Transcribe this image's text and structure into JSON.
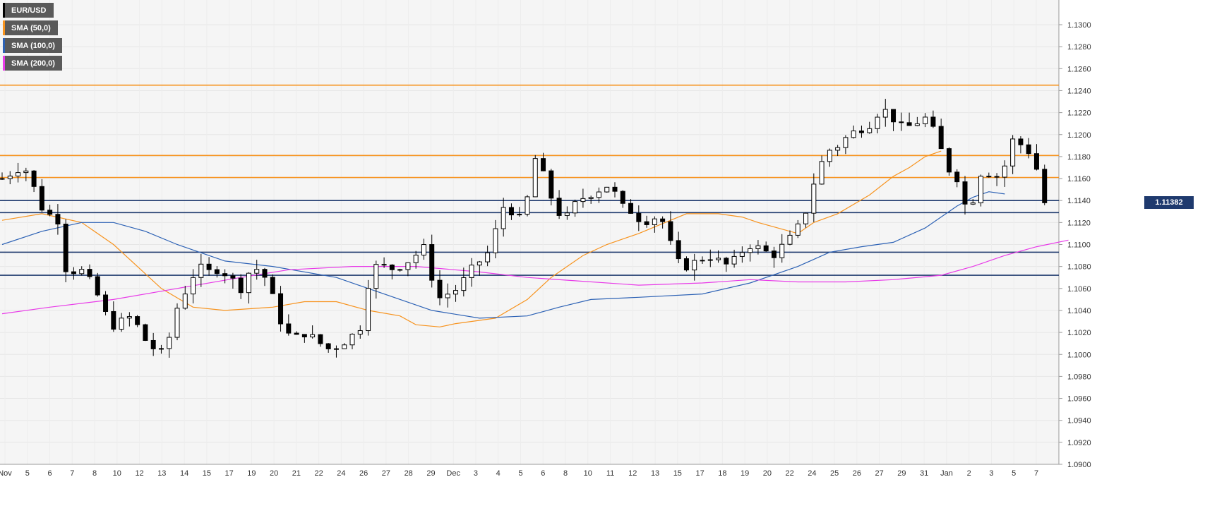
{
  "legend": [
    {
      "label": "EUR/USD",
      "color": "#000000"
    },
    {
      "label": "SMA (50,0)",
      "color": "#f7931e"
    },
    {
      "label": "SMA (100,0)",
      "color": "#2d62b5"
    },
    {
      "label": "SMA (200,0)",
      "color": "#e83be8"
    }
  ],
  "last_price": "1.11382",
  "chart_data": {
    "type": "candlestick",
    "title": "",
    "xlabel": "",
    "ylabel": "",
    "ylim": [
      1.09,
      1.13
    ],
    "y_ticks": [
      "1.1300",
      "1.1280",
      "1.1260",
      "1.1240",
      "1.1220",
      "1.1200",
      "1.1180",
      "1.1160",
      "1.1140",
      "1.1120",
      "1.1100",
      "1.1080",
      "1.1060",
      "1.1040",
      "1.1020",
      "1.1000",
      "1.0980",
      "1.0960",
      "1.0940",
      "1.0920",
      "1.0900"
    ],
    "x_ticks": [
      "Nov",
      "5",
      "6",
      "7",
      "8",
      "10",
      "12",
      "13",
      "14",
      "15",
      "17",
      "19",
      "20",
      "21",
      "22",
      "24",
      "26",
      "27",
      "28",
      "29",
      "Dec",
      "3",
      "4",
      "5",
      "6",
      "8",
      "10",
      "11",
      "12",
      "13",
      "15",
      "17",
      "18",
      "19",
      "20",
      "22",
      "24",
      "25",
      "26",
      "27",
      "29",
      "31",
      "Jan",
      "2",
      "3",
      "5",
      "7"
    ],
    "horizontal_levels": [
      {
        "value": 1.1245,
        "color": "#f7931e",
        "kind": "resistance"
      },
      {
        "value": 1.1181,
        "color": "#f7931e",
        "kind": "resistance"
      },
      {
        "value": 1.1161,
        "color": "#f7931e",
        "kind": "resistance"
      },
      {
        "value": 1.114,
        "color": "#1f3a6e",
        "kind": "support"
      },
      {
        "value": 1.1129,
        "color": "#1f3a6e",
        "kind": "support"
      },
      {
        "value": 1.1093,
        "color": "#1f3a6e",
        "kind": "support"
      },
      {
        "value": 1.1072,
        "color": "#1f3a6e",
        "kind": "support"
      }
    ],
    "close_path": [
      [
        0,
        1.116
      ],
      [
        2,
        1.1172
      ],
      [
        3,
        1.115
      ],
      [
        4,
        1.1125
      ],
      [
        5,
        1.113
      ],
      [
        6,
        1.107
      ],
      [
        7,
        1.108
      ],
      [
        8,
        1.1068
      ],
      [
        9,
        1.105
      ],
      [
        10,
        1.1025
      ],
      [
        11,
        1.103
      ],
      [
        12,
        1.1035
      ],
      [
        13,
        1.1015
      ],
      [
        14,
        1.1005
      ],
      [
        15,
        1.1
      ],
      [
        16,
        1.104
      ],
      [
        17,
        1.106
      ],
      [
        18,
        1.108
      ],
      [
        19,
        1.1075
      ],
      [
        20,
        1.1078
      ],
      [
        21,
        1.107
      ],
      [
        22,
        1.106
      ],
      [
        23,
        1.108
      ],
      [
        24,
        1.1075
      ],
      [
        25,
        1.105
      ],
      [
        26,
        1.102
      ],
      [
        27,
        1.1015
      ],
      [
        28,
        1.102
      ],
      [
        29,
        1.1012
      ],
      [
        30,
        1.1005
      ],
      [
        31,
        1.1008
      ],
      [
        32,
        1.1015
      ],
      [
        33,
        1.1025
      ],
      [
        34,
        1.108
      ],
      [
        35,
        1.108
      ],
      [
        36,
        1.1078
      ],
      [
        37,
        1.1082
      ],
      [
        38,
        1.109
      ],
      [
        39,
        1.1098
      ],
      [
        40,
        1.105
      ],
      [
        41,
        1.1055
      ],
      [
        42,
        1.106
      ],
      [
        43,
        1.1075
      ],
      [
        44,
        1.1085
      ],
      [
        45,
        1.1095
      ],
      [
        46,
        1.1135
      ],
      [
        47,
        1.113
      ],
      [
        48,
        1.112
      ],
      [
        49,
        1.118
      ],
      [
        50,
        1.116
      ],
      [
        51,
        1.113
      ],
      [
        52,
        1.1125
      ],
      [
        53,
        1.114
      ],
      [
        54,
        1.1145
      ],
      [
        55,
        1.115
      ],
      [
        56,
        1.1155
      ],
      [
        57,
        1.1135
      ],
      [
        58,
        1.113
      ],
      [
        59,
        1.112
      ],
      [
        60,
        1.1125
      ],
      [
        61,
        1.112
      ],
      [
        62,
        1.1085
      ],
      [
        63,
        1.108
      ],
      [
        64,
        1.1085
      ],
      [
        65,
        1.109
      ],
      [
        66,
        1.1085
      ],
      [
        67,
        1.108
      ],
      [
        68,
        1.1093
      ],
      [
        69,
        1.11
      ],
      [
        70,
        1.1095
      ],
      [
        71,
        1.109
      ],
      [
        72,
        1.11
      ],
      [
        73,
        1.111
      ],
      [
        74,
        1.113
      ],
      [
        75,
        1.1165
      ],
      [
        76,
        1.1185
      ],
      [
        77,
        1.119
      ],
      [
        78,
        1.12
      ],
      [
        79,
        1.1205
      ],
      [
        80,
        1.121
      ],
      [
        81,
        1.1225
      ],
      [
        82,
        1.1215
      ],
      [
        83,
        1.1205
      ],
      [
        84,
        1.121
      ],
      [
        85,
        1.1215
      ],
      [
        86,
        1.12
      ],
      [
        87,
        1.117
      ],
      [
        88,
        1.116
      ],
      [
        89,
        1.1125
      ],
      [
        90,
        1.1165
      ],
      [
        91,
        1.1165
      ],
      [
        92,
        1.116
      ],
      [
        93,
        1.1195
      ],
      [
        94,
        1.119
      ],
      [
        95,
        1.118
      ],
      [
        96,
        1.1138
      ]
    ],
    "series": [
      {
        "name": "SMA (50,0)",
        "color": "#f7931e",
        "values": [
          [
            0,
            1.1122
          ],
          [
            5,
            1.1128
          ],
          [
            10,
            1.112
          ],
          [
            14,
            1.11
          ],
          [
            20,
            1.106
          ],
          [
            24,
            1.1043
          ],
          [
            28,
            1.104
          ],
          [
            34,
            1.1043
          ],
          [
            38,
            1.1048
          ],
          [
            42,
            1.1048
          ],
          [
            46,
            1.104
          ],
          [
            50,
            1.1035
          ],
          [
            52,
            1.1027
          ],
          [
            55,
            1.1025
          ],
          [
            57,
            1.1028
          ],
          [
            62,
            1.1033
          ],
          [
            66,
            1.105
          ],
          [
            69,
            1.107
          ],
          [
            73,
            1.109
          ],
          [
            76,
            1.11
          ],
          [
            80,
            1.111
          ],
          [
            84,
            1.1122
          ],
          [
            86,
            1.1128
          ],
          [
            90,
            1.1128
          ],
          [
            93,
            1.1125
          ],
          [
            95,
            1.112
          ],
          [
            98,
            1.1114
          ],
          [
            100,
            1.111
          ],
          [
            102,
            1.112
          ],
          [
            105,
            1.1128
          ],
          [
            109,
            1.1145
          ],
          [
            112,
            1.1162
          ],
          [
            114,
            1.117
          ],
          [
            116,
            1.118
          ],
          [
            118,
            1.1185
          ]
        ]
      },
      {
        "name": "SMA (100,0)",
        "color": "#2d62b5",
        "values": [
          [
            0,
            1.11
          ],
          [
            5,
            1.1112
          ],
          [
            10,
            1.112
          ],
          [
            14,
            1.112
          ],
          [
            18,
            1.1112
          ],
          [
            22,
            1.11
          ],
          [
            28,
            1.1085
          ],
          [
            34,
            1.108
          ],
          [
            42,
            1.107
          ],
          [
            48,
            1.1055
          ],
          [
            54,
            1.104
          ],
          [
            60,
            1.1033
          ],
          [
            66,
            1.1035
          ],
          [
            70,
            1.1043
          ],
          [
            74,
            1.105
          ],
          [
            80,
            1.1052
          ],
          [
            88,
            1.1055
          ],
          [
            94,
            1.1065
          ],
          [
            100,
            1.108
          ],
          [
            104,
            1.1093
          ],
          [
            108,
            1.1098
          ],
          [
            112,
            1.1102
          ],
          [
            116,
            1.1115
          ],
          [
            120,
            1.1135
          ],
          [
            122,
            1.1143
          ],
          [
            124,
            1.1148
          ],
          [
            126,
            1.1146
          ]
        ]
      },
      {
        "name": "SMA (200,0)",
        "color": "#e83be8",
        "values": [
          [
            0,
            1.1037
          ],
          [
            6,
            1.1043
          ],
          [
            14,
            1.105
          ],
          [
            22,
            1.106
          ],
          [
            30,
            1.107
          ],
          [
            36,
            1.1077
          ],
          [
            44,
            1.108
          ],
          [
            52,
            1.108
          ],
          [
            60,
            1.1075
          ],
          [
            66,
            1.107
          ],
          [
            72,
            1.1067
          ],
          [
            80,
            1.1063
          ],
          [
            88,
            1.1065
          ],
          [
            94,
            1.1068
          ],
          [
            100,
            1.1066
          ],
          [
            106,
            1.1066
          ],
          [
            112,
            1.1068
          ],
          [
            118,
            1.1072
          ],
          [
            122,
            1.108
          ],
          [
            126,
            1.109
          ],
          [
            130,
            1.1098
          ],
          [
            134,
            1.1104
          ]
        ]
      }
    ],
    "grid": true,
    "legend_position": "top-left"
  }
}
